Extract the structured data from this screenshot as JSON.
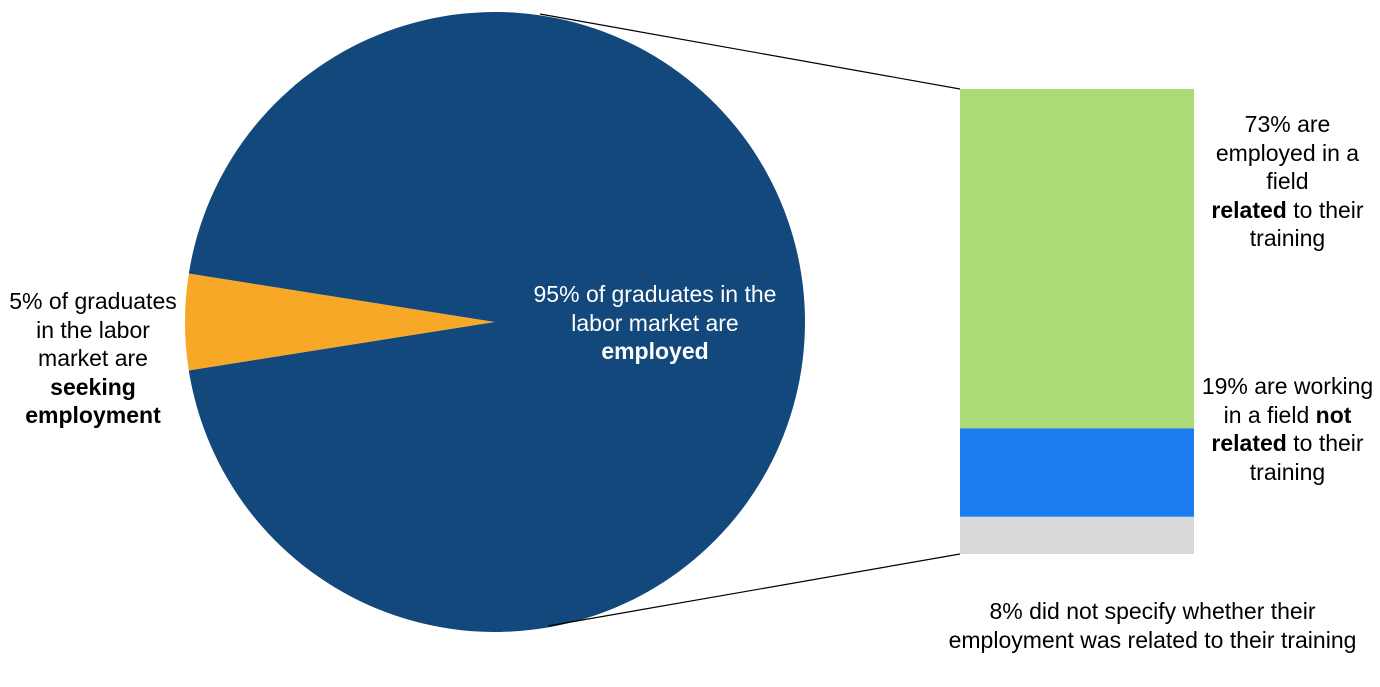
{
  "chart_data": [
    {
      "type": "pie",
      "slices": [
        {
          "label": "employed",
          "value": 95,
          "color": "#12487b"
        },
        {
          "label": "seeking employment",
          "value": 5,
          "color": "#f7a826"
        }
      ]
    },
    {
      "type": "bar",
      "stacked": true,
      "segments": [
        {
          "label": "related",
          "value": 73,
          "color": "#abdb77"
        },
        {
          "label": "not related",
          "value": 19,
          "color": "#1a7df0"
        },
        {
          "label": "not specified",
          "value": 8,
          "color": "#d9d9d9"
        }
      ]
    }
  ],
  "labels": {
    "seeking": {
      "pre": "5% of graduates in the labor market are",
      "bold": "seeking employment",
      "post": ""
    },
    "employed": {
      "pre": "95% of graduates in the labor market are",
      "bold": "employed",
      "post": ""
    },
    "related": {
      "pre": "73% are employed in a field",
      "bold": "related",
      "post": "to their training"
    },
    "not_related": {
      "pre": "19% are working in a field",
      "bold": "not related",
      "post": "to their training"
    },
    "unspecified": {
      "pre": "8% did not specify whether their employment was related to their training",
      "bold": "",
      "post": ""
    }
  }
}
